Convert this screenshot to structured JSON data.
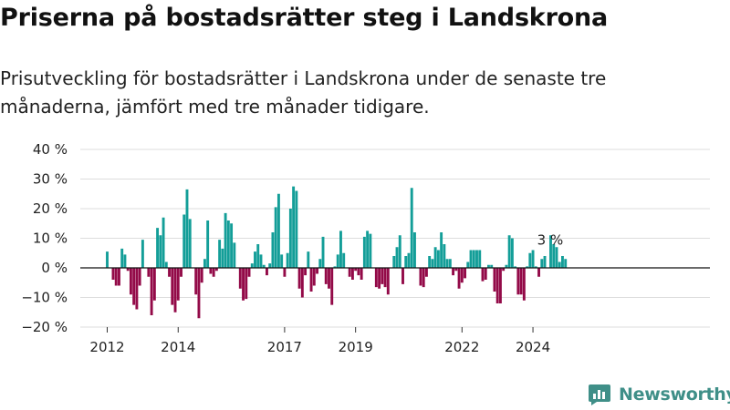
{
  "title": "Priserna på bostadsrätter steg i Landskrona",
  "subtitle": "Prisutveckling för bostadsrätter i Landskrona under de senaste tre månaderna, jämfört med tre månader tidigare.",
  "brand": {
    "name": "Newsworthy"
  },
  "colors": {
    "positive": "#139e98",
    "negative": "#930a48",
    "grid": "#dddddd",
    "axis": "#111111"
  },
  "chart_data": {
    "type": "bar",
    "xlabel": "",
    "ylabel": "",
    "ylim": [
      -20,
      40
    ],
    "y_ticks": [
      -20,
      -10,
      0,
      10,
      20,
      30,
      40
    ],
    "y_tick_labels": [
      "−20 %",
      "−10 %",
      "0 %",
      "10 %",
      "20 %",
      "30 %",
      "40 %"
    ],
    "x_tick_labels": [
      "2012",
      "2014",
      "2017",
      "2019",
      "2022",
      "2024"
    ],
    "x_tick_dates": [
      "2012-01",
      "2014-01",
      "2017-01",
      "2019-01",
      "2022-01",
      "2024-01"
    ],
    "start": "2012-01",
    "end": "2024-10",
    "values": [
      5.5,
      0,
      -4,
      -6,
      -6,
      6.5,
      4.5,
      -1,
      -9,
      -12.5,
      -14,
      -6,
      9.5,
      0,
      -3,
      -16,
      -11,
      13.5,
      11,
      17,
      2,
      -3,
      -12.5,
      -15,
      -11,
      -3,
      18,
      26.5,
      16.5,
      0,
      -9,
      -17,
      -5,
      3,
      16,
      -2,
      -3,
      -1,
      9.5,
      6.5,
      18.5,
      16,
      15,
      8.5,
      0,
      -7,
      -11,
      -10.5,
      -3,
      1.5,
      5.5,
      8,
      4.5,
      1,
      -2.5,
      1.5,
      12,
      20.5,
      25,
      4.5,
      -3,
      5,
      20,
      27.5,
      26,
      -7,
      -10,
      -2.5,
      5.5,
      -8,
      -6,
      -2,
      3,
      10.5,
      -5.5,
      -7,
      -12.5,
      0.5,
      4.5,
      12.5,
      5,
      0,
      -3,
      -4,
      -1,
      -2.5,
      -4,
      10.5,
      12.5,
      11.5,
      0,
      -6.5,
      -7,
      -5.5,
      -6.5,
      -9,
      0,
      4,
      7,
      11,
      -5.5,
      4,
      5,
      27,
      12,
      0,
      -6,
      -6.5,
      -3,
      4,
      3,
      7,
      6,
      12,
      8,
      3,
      3,
      -2.5,
      -1,
      -7,
      -5,
      -3.5,
      2,
      6,
      6,
      6,
      6,
      -4.5,
      -4,
      1,
      1,
      -8,
      -12,
      -12,
      -1,
      1,
      11,
      10,
      0.5,
      -9,
      -9,
      -11,
      0.5,
      5,
      6,
      0.5,
      -3,
      3,
      4,
      0,
      11,
      8,
      7,
      2,
      4,
      3
    ],
    "annotation": {
      "label": "3 %",
      "value": 3,
      "date": "2024-10"
    }
  }
}
